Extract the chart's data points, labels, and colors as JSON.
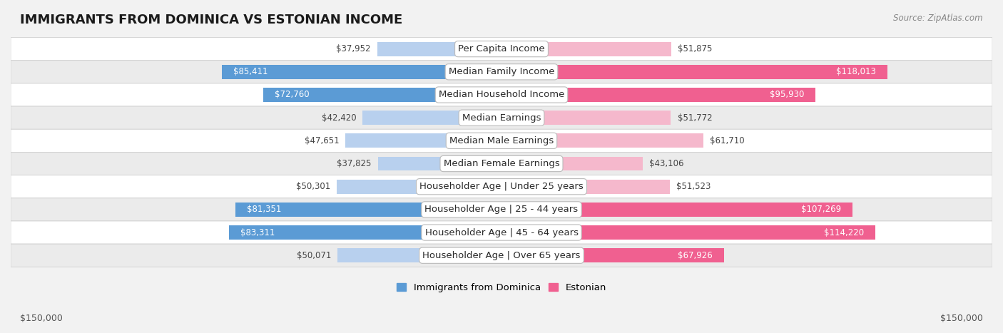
{
  "title": "IMMIGRANTS FROM DOMINICA VS ESTONIAN INCOME",
  "source": "Source: ZipAtlas.com",
  "categories": [
    "Per Capita Income",
    "Median Family Income",
    "Median Household Income",
    "Median Earnings",
    "Median Male Earnings",
    "Median Female Earnings",
    "Householder Age | Under 25 years",
    "Householder Age | 25 - 44 years",
    "Householder Age | 45 - 64 years",
    "Householder Age | Over 65 years"
  ],
  "dominica_values": [
    37952,
    85411,
    72760,
    42420,
    47651,
    37825,
    50301,
    81351,
    83311,
    50071
  ],
  "estonian_values": [
    51875,
    118013,
    95930,
    51772,
    61710,
    43106,
    51523,
    107269,
    114220,
    67926
  ],
  "dominica_color_dark": "#5b9bd5",
  "dominica_color_light": "#b8d0ee",
  "estonian_color_dark": "#f06090",
  "estonian_color_light": "#f5b8cc",
  "bar_height": 0.62,
  "max_value": 150000,
  "bg_color": "#f2f2f2",
  "row_bg_even": "#ffffff",
  "row_bg_odd": "#ebebeb",
  "row_border": "#d0d0d0",
  "legend_label_dominica": "Immigrants from Dominica",
  "legend_label_estonian": "Estonian",
  "xlabel_left": "$150,000",
  "xlabel_right": "$150,000",
  "title_fontsize": 13,
  "label_fontsize": 9.5,
  "value_fontsize": 8.5,
  "tick_fontsize": 9,
  "source_fontsize": 8.5,
  "dark_threshold": 65000
}
